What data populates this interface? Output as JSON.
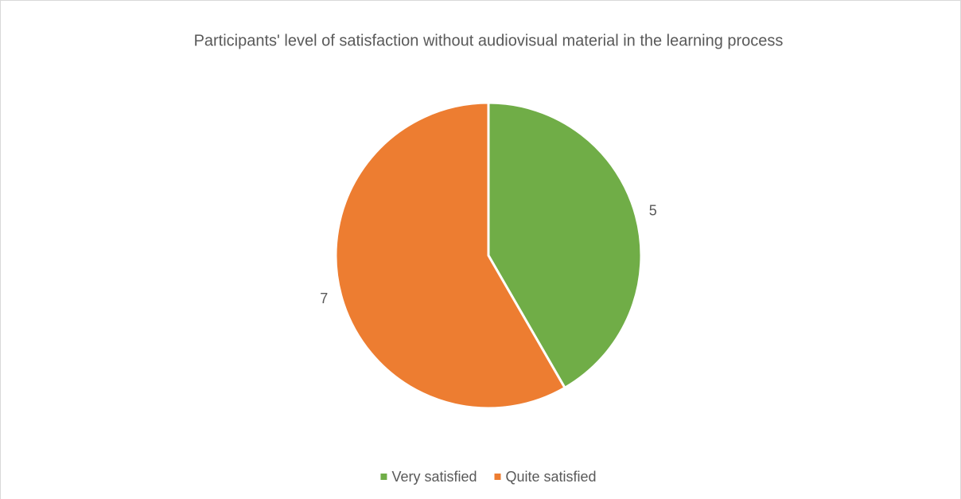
{
  "chart_data": {
    "type": "pie",
    "title": "Participants' level of satisfaction without audiovisual material in the learning process",
    "categories": [
      "Very satisfied",
      "Quite satisfied"
    ],
    "values": [
      5,
      7
    ],
    "colors": [
      "#70ad47",
      "#ed7d31"
    ],
    "legend": "bottom"
  }
}
